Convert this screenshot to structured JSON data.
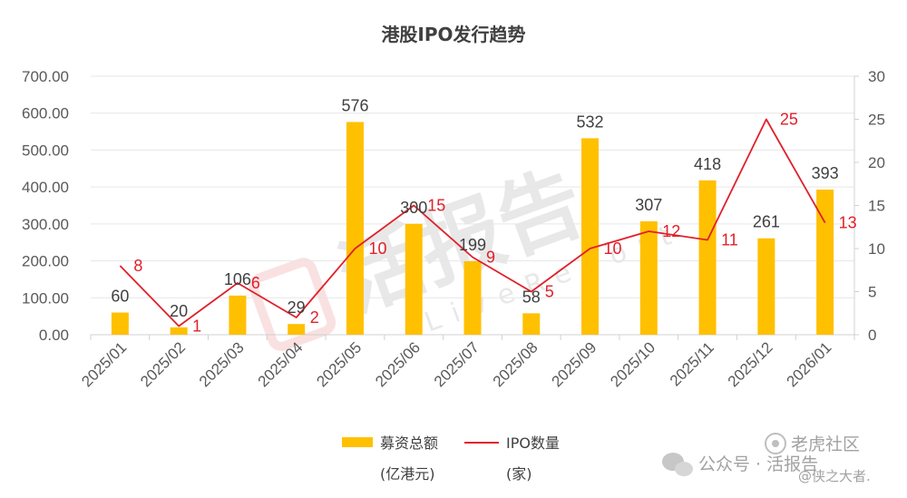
{
  "chart_data": {
    "type": "bar",
    "title": "港股IPO发行趋势",
    "categories": [
      "2025/01",
      "2025/02",
      "2025/03",
      "2025/04",
      "2025/05",
      "2025/06",
      "2025/07",
      "2025/08",
      "2025/09",
      "2025/10",
      "2025/11",
      "2025/12",
      "2026/01"
    ],
    "series": [
      {
        "name": "募资总额",
        "unit": "(亿港元)",
        "type": "bar",
        "axis": "left",
        "color": "#ffc000",
        "values": [
          60,
          20,
          106,
          29,
          576,
          300,
          199,
          58,
          532,
          307,
          418,
          261,
          393
        ]
      },
      {
        "name": "IPO数量",
        "unit": "(家)",
        "type": "line",
        "axis": "right",
        "color": "#e0202a",
        "values": [
          8,
          1,
          6,
          2,
          10,
          15,
          9,
          5,
          10,
          12,
          11,
          25,
          13
        ]
      }
    ],
    "y_left": {
      "ylim": [
        0,
        700
      ],
      "ticks": [
        "0.00",
        "100.00",
        "200.00",
        "300.00",
        "400.00",
        "500.00",
        "600.00",
        "700.00"
      ]
    },
    "y_right": {
      "ylim": [
        0,
        30
      ],
      "ticks": [
        "0",
        "5",
        "10",
        "15",
        "20",
        "25",
        "30"
      ]
    },
    "legend_position": "bottom"
  },
  "watermark": {
    "center_text": "活报告",
    "center_subtext": "LiveReport",
    "footer_text": "公众号 · 活报告",
    "corner_text": "老虎社区",
    "corner_handle": "@侠之大者.",
    "wechat_icon": "wechat-icon",
    "tiger_icon": "tiger-icon"
  }
}
